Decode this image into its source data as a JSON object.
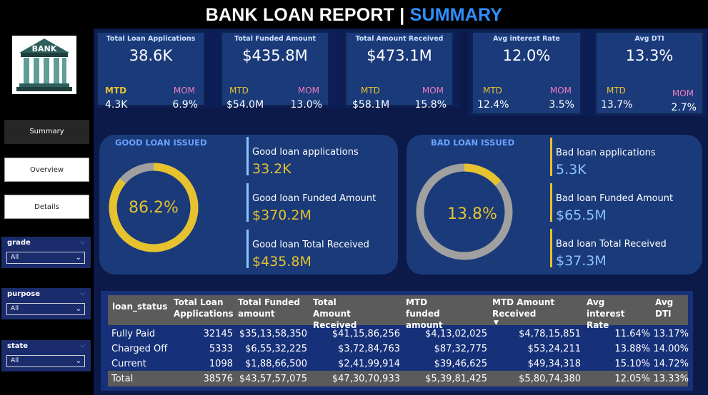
{
  "header": {
    "title_main": "BANK LOAN REPORT | ",
    "title_accent": "SUMMARY"
  },
  "logo": {
    "text": "BANK"
  },
  "nav": {
    "summary": "Summary",
    "overview": "Overview",
    "details": "Details"
  },
  "filters": [
    {
      "label": "grade",
      "value": "All"
    },
    {
      "label": "purpose",
      "value": "All"
    },
    {
      "label": "state",
      "value": "All"
    }
  ],
  "kpis": [
    {
      "title": "Total Loan Applications",
      "value": "38.6K",
      "mtd_label": "MTD",
      "mom_label": "MOM",
      "mtd": "4.3K",
      "mom": "6.9%"
    },
    {
      "title": "Total Funded Amount",
      "value": "$435.8M",
      "mtd_label": "MTD",
      "mom_label": "MOM",
      "mtd": "$54.0M",
      "mom": "13.0%"
    },
    {
      "title": "Total Amount Received",
      "value": "$473.1M",
      "mtd_label": "MTD",
      "mom_label": "MOM",
      "mtd": "$58.1M",
      "mom": "15.8%"
    },
    {
      "title": "Avg interest Rate",
      "value": "12.0%",
      "mtd_label": "MTD",
      "mom_label": "MOM",
      "mtd": "12.4%",
      "mom": "3.5%"
    },
    {
      "title": "Avg DTI",
      "value": "13.3%",
      "mtd_label": "MTD",
      "mom_label": "MOM",
      "mtd": "13.7%",
      "mom": "2.7%"
    }
  ],
  "good": {
    "title": "GOOD LOAN ISSUED",
    "pct": "86.2%",
    "fraction": 0.862,
    "apps_label": "Good loan applications",
    "apps": "33.2K",
    "funded_label": "Good loan Funded Amount",
    "funded": "$370.2M",
    "received_label": "Good loan Total Received",
    "received": "$435.8M"
  },
  "bad": {
    "title": "BAD LOAN ISSUED",
    "pct": "13.8%",
    "fraction": 0.138,
    "apps_label": "Bad loan applications",
    "apps": "5.3K",
    "funded_label": "Bad loan Funded Amount",
    "funded": "$65.5M",
    "received_label": "Bad loan Total Received",
    "received": "$37.3M"
  },
  "table": {
    "headers": [
      "loan_status",
      "Total Loan Applications",
      "Total Funded amount",
      "Total Amount Received",
      "MTD funded amount",
      "MTD Amount Received",
      "Avg interest Rate",
      "Avg DTI"
    ],
    "rows": [
      [
        "Fully Paid",
        "32145",
        "$35,13,58,350",
        "$41,15,86,256",
        "$4,13,02,025",
        "$4,78,15,851",
        "11.64%",
        "13.17%"
      ],
      [
        "Charged Off",
        "5333",
        "$6,55,32,225",
        "$3,72,84,763",
        "$87,32,775",
        "$53,24,211",
        "13.88%",
        "14.00%"
      ],
      [
        "Current",
        "1098",
        "$1,88,66,500",
        "$2,41,99,914",
        "$39,46,625",
        "$49,34,318",
        "15.10%",
        "14.72%"
      ]
    ],
    "total": [
      "Total",
      "38576",
      "$43,57,57,075",
      "$47,30,70,933",
      "$5,39,81,425",
      "$5,80,74,380",
      "12.05%",
      "13.33%"
    ]
  },
  "colors": {
    "accent_blue": "#2f8fff",
    "yellow": "#e6c22e",
    "pink": "#f07cbd",
    "gray": "#a0a0a0",
    "light_blue": "#8cc4ff"
  }
}
